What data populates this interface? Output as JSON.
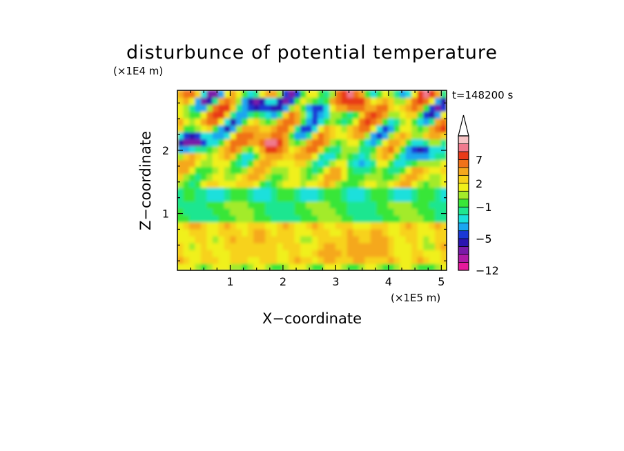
{
  "chart_data": {
    "type": "heatmap",
    "title": "disturbunce of potential temperature",
    "time_label": "t=148200 s",
    "xlabel": "X−coordinate",
    "ylabel": "Z−coordinate",
    "x_unit": "(×1E5 m)",
    "y_unit": "(×1E4 m)",
    "xlim": [
      0,
      5.1
    ],
    "ylim": [
      0.1,
      2.95
    ],
    "x_ticks": [
      {
        "value": 1,
        "label": "1"
      },
      {
        "value": 2,
        "label": "2"
      },
      {
        "value": 3,
        "label": "3"
      },
      {
        "value": 4,
        "label": "4"
      },
      {
        "value": 5,
        "label": "5"
      }
    ],
    "y_ticks": [
      {
        "value": 1,
        "label": "1"
      },
      {
        "value": 2,
        "label": "2"
      }
    ],
    "colorbar": {
      "levels": [
        -12,
        -10,
        -8,
        -6,
        -5,
        -4,
        -3,
        -2,
        -1,
        0,
        1,
        2,
        3,
        5,
        7,
        9,
        11
      ],
      "colors": [
        "#e6199c",
        "#b01aa6",
        "#7a1aa8",
        "#2a14b0",
        "#1a38d6",
        "#1aa6f0",
        "#1ae0dc",
        "#1fe690",
        "#39e639",
        "#a3eb2a",
        "#f0f01a",
        "#f7d21a",
        "#f5a81e",
        "#f07219",
        "#e83a19",
        "#f07a8e",
        "#f7c4c6"
      ],
      "labels": [
        "−12",
        "−5",
        "−1",
        "2",
        "7"
      ],
      "extends_max": true
    },
    "bands": [
      {
        "z_range": [
          0.1,
          0.25
        ],
        "value": 0.5
      },
      {
        "z_range": [
          0.25,
          0.85
        ],
        "value": 2.5
      },
      {
        "z_range": [
          0.85,
          1.2
        ],
        "value": -0.5
      },
      {
        "z_range": [
          1.2,
          1.4
        ],
        "value": -1.5
      },
      {
        "z_range": [
          1.4,
          2.95
        ],
        "value": 1.5
      }
    ],
    "features": [
      {
        "x": 2.9,
        "z": 0.42,
        "value": 3.5
      },
      {
        "x": 3.6,
        "z": 0.42,
        "value": 3.5
      },
      {
        "x": 1.6,
        "z": 0.45,
        "value": 2.5
      },
      {
        "x": 0.9,
        "z": 0.3,
        "value": 2.0
      },
      {
        "x": 3.5,
        "z": 1.8,
        "value": -3.5
      },
      {
        "x": 4.6,
        "z": 2.0,
        "value": -5.5
      },
      {
        "x": 1.5,
        "z": 2.75,
        "value": -7.0
      },
      {
        "x": 1.8,
        "z": 2.1,
        "value": 10.0
      },
      {
        "x": 3.4,
        "z": 2.75,
        "value": 9.0
      },
      {
        "x": 0.3,
        "z": 2.15,
        "value": -7.0
      },
      {
        "x": 2.6,
        "z": 2.65,
        "value": -5.0
      }
    ]
  }
}
